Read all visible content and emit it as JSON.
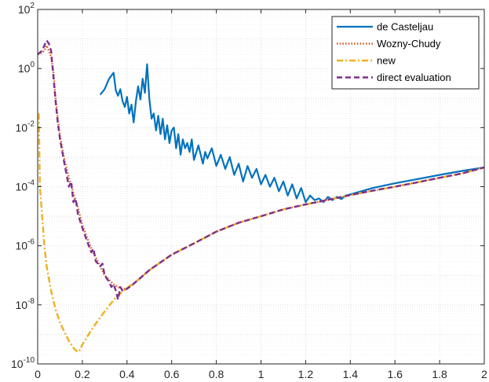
{
  "chart_data": {
    "type": "line",
    "title": "",
    "xlabel": "",
    "ylabel": "",
    "xlim": [
      0,
      2
    ],
    "ylim": [
      1e-10,
      100
    ],
    "yscale": "log",
    "grid": true,
    "legend_position": "top-right",
    "x_ticks": [
      "0",
      "0.2",
      "0.4",
      "0.6",
      "0.8",
      "1",
      "1.2",
      "1.4",
      "1.6",
      "1.8",
      "2"
    ],
    "y_ticks": [
      {
        "base": "10",
        "exp": "2",
        "value": 100
      },
      {
        "base": "10",
        "exp": "0",
        "value": 1
      },
      {
        "base": "10",
        "exp": "-2",
        "value": 0.01
      },
      {
        "base": "10",
        "exp": "-4",
        "value": 0.0001
      },
      {
        "base": "10",
        "exp": "-6",
        "value": 1e-06
      },
      {
        "base": "10",
        "exp": "-8",
        "value": 1e-08
      },
      {
        "base": "10",
        "exp": "-10",
        "value": 1e-10
      }
    ],
    "series": [
      {
        "name": "de Casteljau",
        "color": "#0072BD",
        "style": "solid",
        "points": [
          [
            0.28,
            0.13
          ],
          [
            0.3,
            0.2
          ],
          [
            0.32,
            0.45
          ],
          [
            0.34,
            0.72
          ],
          [
            0.35,
            0.18
          ],
          [
            0.36,
            0.12
          ],
          [
            0.37,
            0.2
          ],
          [
            0.38,
            0.08
          ],
          [
            0.39,
            0.05
          ],
          [
            0.4,
            0.11
          ],
          [
            0.41,
            0.03
          ],
          [
            0.42,
            0.06
          ],
          [
            0.43,
            0.015
          ],
          [
            0.44,
            0.08
          ],
          [
            0.45,
            0.25
          ],
          [
            0.46,
            0.09
          ],
          [
            0.47,
            0.45
          ],
          [
            0.48,
            0.15
          ],
          [
            0.49,
            1.4
          ],
          [
            0.5,
            0.09
          ],
          [
            0.51,
            0.02
          ],
          [
            0.52,
            0.03
          ],
          [
            0.53,
            0.008
          ],
          [
            0.54,
            0.025
          ],
          [
            0.55,
            0.006
          ],
          [
            0.56,
            0.02
          ],
          [
            0.57,
            0.004
          ],
          [
            0.58,
            0.012
          ],
          [
            0.59,
            0.003
          ],
          [
            0.6,
            0.008
          ],
          [
            0.61,
            0.01
          ],
          [
            0.62,
            0.002
          ],
          [
            0.63,
            0.006
          ],
          [
            0.64,
            0.0012
          ],
          [
            0.65,
            0.004
          ],
          [
            0.66,
            0.002
          ],
          [
            0.67,
            0.003
          ],
          [
            0.68,
            0.0015
          ],
          [
            0.69,
            0.004
          ],
          [
            0.7,
            0.0008
          ],
          [
            0.72,
            0.0025
          ],
          [
            0.74,
            0.0006
          ],
          [
            0.75,
            0.0015
          ],
          [
            0.76,
            0.0009
          ],
          [
            0.78,
            0.002
          ],
          [
            0.8,
            0.0005
          ],
          [
            0.82,
            0.0012
          ],
          [
            0.84,
            0.0004
          ],
          [
            0.86,
            0.001
          ],
          [
            0.88,
            0.00025
          ],
          [
            0.9,
            0.0006
          ],
          [
            0.92,
            0.00015
          ],
          [
            0.94,
            0.0005
          ],
          [
            0.96,
            0.0002
          ],
          [
            0.98,
            0.0004
          ],
          [
            1.0,
            0.00012
          ],
          [
            1.02,
            0.00025
          ],
          [
            1.04,
            0.0001
          ],
          [
            1.06,
            0.0002
          ],
          [
            1.08,
            7e-05
          ],
          [
            1.1,
            0.00015
          ],
          [
            1.12,
            5e-05
          ],
          [
            1.14,
            0.00012
          ],
          [
            1.16,
            4e-05
          ],
          [
            1.18,
            9e-05
          ],
          [
            1.2,
            3e-05
          ],
          [
            1.22,
            5e-05
          ],
          [
            1.24,
            3.5e-05
          ],
          [
            1.26,
            4e-05
          ],
          [
            1.28,
            3e-05
          ],
          [
            1.3,
            4.5e-05
          ],
          [
            1.32,
            3.5e-05
          ],
          [
            1.34,
            4.5e-05
          ],
          [
            1.36,
            3.8e-05
          ],
          [
            1.38,
            5e-05
          ],
          [
            1.4,
            5.5e-05
          ],
          [
            1.45,
            7e-05
          ],
          [
            1.5,
            9e-05
          ],
          [
            1.6,
            0.00013
          ],
          [
            1.7,
            0.00018
          ],
          [
            1.8,
            0.00025
          ],
          [
            1.9,
            0.00034
          ],
          [
            2.0,
            0.00045
          ]
        ]
      },
      {
        "name": "Wozny-Chudy",
        "color": "#D95319",
        "style": "dotted",
        "points": [
          [
            0.0,
            3
          ],
          [
            0.02,
            3.5
          ],
          [
            0.03,
            4
          ],
          [
            0.04,
            6
          ],
          [
            0.05,
            4
          ],
          [
            0.06,
            2.5
          ],
          [
            0.07,
            0.8
          ],
          [
            0.08,
            0.1
          ],
          [
            0.09,
            0.02
          ],
          [
            0.1,
            0.005
          ],
          [
            0.12,
            0.0008
          ],
          [
            0.14,
            0.0002
          ],
          [
            0.16,
            6e-05
          ],
          [
            0.18,
            2e-05
          ],
          [
            0.2,
            5e-06
          ],
          [
            0.22,
            2e-06
          ],
          [
            0.24,
            8e-07
          ],
          [
            0.26,
            4e-07
          ],
          [
            0.28,
            2e-07
          ],
          [
            0.3,
            1e-07
          ],
          [
            0.32,
            7e-08
          ],
          [
            0.34,
            5e-08
          ],
          [
            0.36,
            4e-08
          ],
          [
            0.38,
            3.5e-08
          ],
          [
            0.4,
            3.5e-08
          ],
          [
            0.42,
            4.5e-08
          ],
          [
            0.45,
            7e-08
          ],
          [
            0.5,
            1.5e-07
          ],
          [
            0.6,
            5e-07
          ],
          [
            0.7,
            1.2e-06
          ],
          [
            0.8,
            3e-06
          ],
          [
            0.9,
            6e-06
          ],
          [
            1.0,
            1e-05
          ],
          [
            1.1,
            1.7e-05
          ],
          [
            1.2,
            2.5e-05
          ],
          [
            1.3,
            3.6e-05
          ],
          [
            1.4,
            5.2e-05
          ],
          [
            1.5,
            7.3e-05
          ],
          [
            1.6,
            0.0001
          ],
          [
            1.7,
            0.00014
          ],
          [
            1.8,
            0.0002
          ],
          [
            1.9,
            0.00028
          ],
          [
            2.0,
            0.00045
          ]
        ]
      },
      {
        "name": "new",
        "color": "#EDB120",
        "style": "dashdot",
        "points": [
          [
            0.005,
            0.03
          ],
          [
            0.01,
            0.0001
          ],
          [
            0.02,
            1e-05
          ],
          [
            0.03,
            1e-06
          ],
          [
            0.04,
            2e-07
          ],
          [
            0.06,
            3e-08
          ],
          [
            0.08,
            7e-09
          ],
          [
            0.1,
            2.5e-09
          ],
          [
            0.12,
            1.2e-09
          ],
          [
            0.14,
            6e-10
          ],
          [
            0.16,
            3.5e-10
          ],
          [
            0.18,
            2.5e-10
          ],
          [
            0.19,
            3e-10
          ],
          [
            0.2,
            4.5e-10
          ],
          [
            0.22,
            8e-10
          ],
          [
            0.25,
            1.8e-09
          ],
          [
            0.3,
            6e-09
          ],
          [
            0.35,
            1.8e-08
          ],
          [
            0.4,
            3.7e-08
          ],
          [
            0.45,
            7e-08
          ],
          [
            0.5,
            1.5e-07
          ],
          [
            0.6,
            5e-07
          ],
          [
            0.7,
            1.2e-06
          ],
          [
            0.8,
            3e-06
          ],
          [
            0.9,
            6e-06
          ],
          [
            1.0,
            1e-05
          ],
          [
            1.1,
            1.7e-05
          ],
          [
            1.2,
            2.5e-05
          ],
          [
            1.3,
            3.6e-05
          ],
          [
            1.4,
            5.2e-05
          ],
          [
            1.5,
            7.3e-05
          ],
          [
            1.6,
            0.0001
          ],
          [
            1.7,
            0.00014
          ],
          [
            1.8,
            0.0002
          ],
          [
            1.9,
            0.00028
          ],
          [
            2.0,
            0.00045
          ]
        ]
      },
      {
        "name": "direct evaluation",
        "color": "#7E2F8E",
        "style": "dashed",
        "points": [
          [
            0.0,
            3
          ],
          [
            0.02,
            4
          ],
          [
            0.03,
            6
          ],
          [
            0.04,
            9
          ],
          [
            0.05,
            7
          ],
          [
            0.06,
            4
          ],
          [
            0.065,
            1.5
          ],
          [
            0.07,
            0.6
          ],
          [
            0.08,
            0.08
          ],
          [
            0.09,
            0.015
          ],
          [
            0.1,
            0.004
          ],
          [
            0.12,
            0.0006
          ],
          [
            0.14,
            0.0001
          ],
          [
            0.15,
            0.00015
          ],
          [
            0.16,
            3e-05
          ],
          [
            0.17,
            4e-05
          ],
          [
            0.18,
            1.2e-05
          ],
          [
            0.2,
            4e-06
          ],
          [
            0.22,
            1.5e-06
          ],
          [
            0.24,
            6e-07
          ],
          [
            0.25,
            8e-07
          ],
          [
            0.26,
            3e-07
          ],
          [
            0.28,
            2e-07
          ],
          [
            0.29,
            2.5e-07
          ],
          [
            0.3,
            1e-07
          ],
          [
            0.32,
            6e-08
          ],
          [
            0.33,
            4e-08
          ],
          [
            0.34,
            5e-08
          ],
          [
            0.35,
            3e-08
          ],
          [
            0.36,
            1.5e-08
          ],
          [
            0.37,
            4e-08
          ],
          [
            0.38,
            3e-08
          ],
          [
            0.4,
            3.5e-08
          ],
          [
            0.42,
            4.5e-08
          ],
          [
            0.45,
            7e-08
          ],
          [
            0.5,
            1.5e-07
          ],
          [
            0.6,
            5e-07
          ],
          [
            0.7,
            1.2e-06
          ],
          [
            0.8,
            3e-06
          ],
          [
            0.9,
            6e-06
          ],
          [
            1.0,
            1e-05
          ],
          [
            1.1,
            1.7e-05
          ],
          [
            1.2,
            2.5e-05
          ],
          [
            1.3,
            3.6e-05
          ],
          [
            1.4,
            5.2e-05
          ],
          [
            1.5,
            7.3e-05
          ],
          [
            1.6,
            0.0001
          ],
          [
            1.7,
            0.00014
          ],
          [
            1.8,
            0.0002
          ],
          [
            1.9,
            0.00028
          ],
          [
            2.0,
            0.00045
          ]
        ]
      }
    ]
  }
}
